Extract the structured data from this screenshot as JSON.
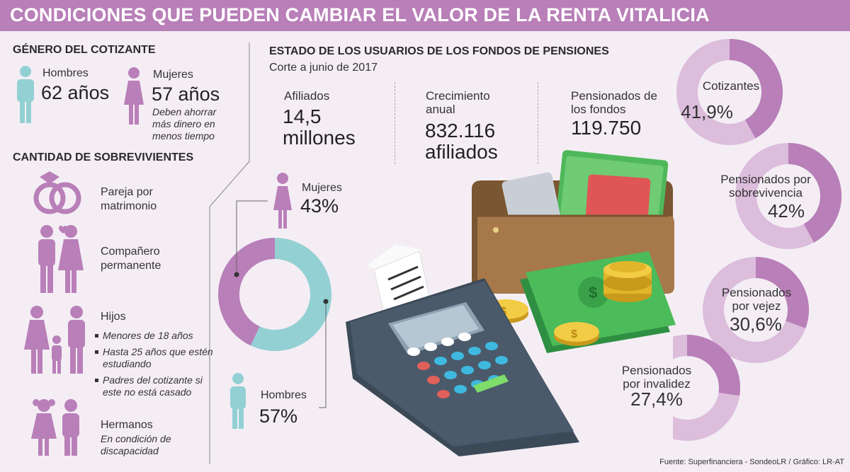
{
  "title": "CONDICIONES QUE PUEDEN CAMBIAR EL VALOR DE LA RENTA VITALICIA",
  "genero": {
    "heading": "GÉNERO DEL COTIZANTE",
    "hombres_label": "Hombres",
    "hombres_value": "62 años",
    "mujeres_label": "Mujeres",
    "mujeres_value": "57 años",
    "mujeres_note": "Deben ahorrar más dinero en menos tiempo"
  },
  "sobrevivientes": {
    "heading": "CANTIDAD DE SOBREVIVIENTES",
    "pareja": "Pareja por matrimonio",
    "companero": "Compañero permanente",
    "hijos": "Hijos",
    "hijos_items": [
      "Menores de 18 años",
      "Hasta 25 años que estén estudiando",
      "Padres del cotizante si este no está casado"
    ],
    "hermanos": "Hermanos",
    "hermanos_note": "En condición de discapacidad"
  },
  "estado": {
    "heading": "ESTADO DE LOS USUARIOS DE LOS FONDOS DE PENSIONES",
    "subheading": "Corte a junio de 2017",
    "afiliados_label": "Afiliados",
    "afiliados_value": "14,5 millones",
    "crecimiento_label": "Crecimiento anual",
    "crecimiento_value": "832.116 afiliados",
    "pensionados_label": "Pensionados de los fondos",
    "pensionados_value": "119.750"
  },
  "colors": {
    "purple": "#b97fb9",
    "light_purple": "#dcbddc",
    "teal": "#93d0d4",
    "header": "#b97fb9"
  },
  "chart_data": [
    {
      "type": "pie",
      "subtype": "donut",
      "categories": [
        "Mujeres",
        "Hombres"
      ],
      "values": [
        43,
        57
      ],
      "labels": [
        "43%",
        "57%"
      ],
      "colors": [
        "#b97fb9",
        "#93d0d4"
      ]
    },
    {
      "type": "pie",
      "subtype": "donut",
      "items": [
        {
          "name": "Cotizantes",
          "value": 41.9,
          "label": "41,9%"
        },
        {
          "name": "Pensionados por sobrevivencia",
          "value": 42,
          "label": "42%"
        },
        {
          "name": "Pensionados por vejez",
          "value": 30.6,
          "label": "30,6%"
        },
        {
          "name": "Pensionados por invalidez",
          "value": 27.4,
          "label": "27,4%"
        }
      ]
    }
  ],
  "source": "Fuente: Superfinanciera - SondeoLR / Gráfico: LR-AT"
}
